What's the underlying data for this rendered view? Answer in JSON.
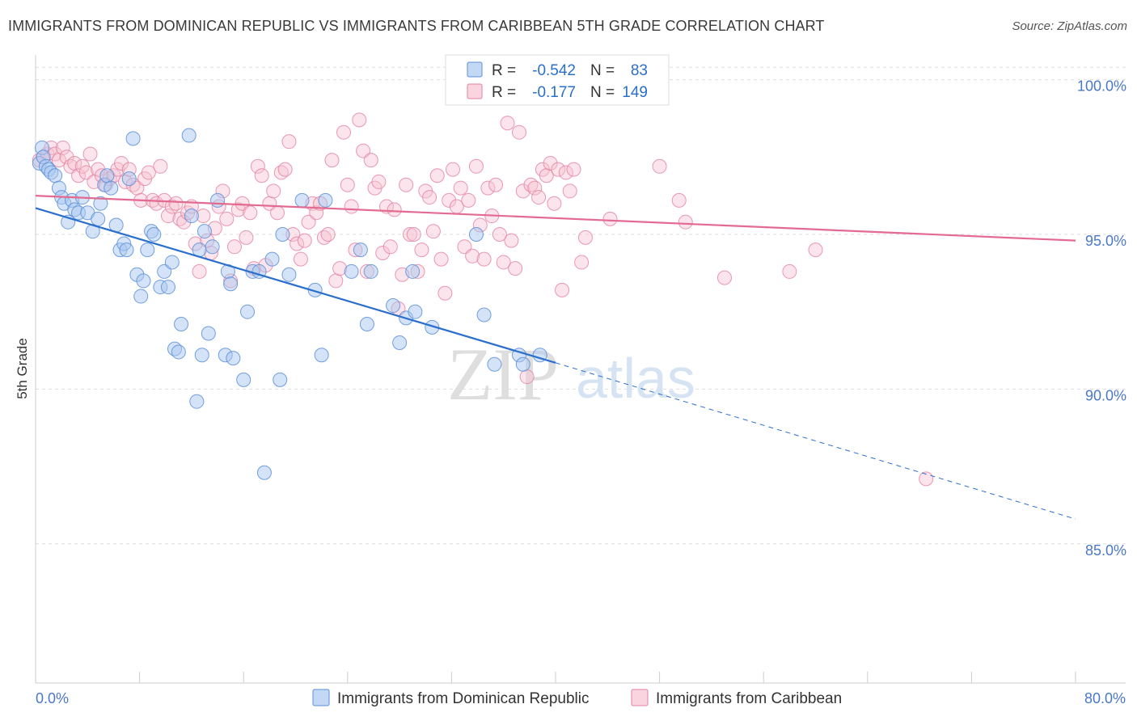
{
  "title": "IMMIGRANTS FROM DOMINICAN REPUBLIC VS IMMIGRANTS FROM CARIBBEAN 5TH GRADE CORRELATION CHART",
  "source": "Source: ZipAtlas.com",
  "watermark": {
    "part1": "ZIP",
    "part2": "atlas"
  },
  "legend_box": {
    "rows": [
      {
        "r_label": "R =",
        "r_value": "-0.542",
        "n_label": "N =",
        "n_value": "83"
      },
      {
        "r_label": "R =",
        "r_value": "-0.177",
        "n_label": "N =",
        "n_value": "149"
      }
    ]
  },
  "colors": {
    "blue": "#5b8fd9",
    "blue_fill": "#aac8f0",
    "blue_line": "#2a6fcc",
    "pink": "#e57fa0",
    "pink_fill": "#f6c3d3",
    "pink_line": "#e36a90",
    "tick_text": "#4a78c8",
    "grid": "#dddddd"
  },
  "chart_data": {
    "type": "scatter",
    "title": "IMMIGRANTS FROM DOMINICAN REPUBLIC VS IMMIGRANTS FROM CARIBBEAN 5TH GRADE CORRELATION CHART",
    "xlabel": "",
    "ylabel": "5th Grade",
    "xlim": [
      0,
      80
    ],
    "ylim": [
      80.5,
      100.8
    ],
    "x_tick_labels": [
      "0.0%",
      "80.0%"
    ],
    "y_ticks": [
      85,
      90,
      95,
      100
    ],
    "y_tick_labels": [
      "85.0%",
      "90.0%",
      "95.0%",
      "100.0%"
    ],
    "grid": true,
    "legend_position": "bottom",
    "series": [
      {
        "name": "Immigrants from Dominican Republic",
        "color": "blue",
        "r": -0.542,
        "n": 83,
        "trend": {
          "x0": 0,
          "y0": 95.85,
          "x1": 40,
          "y1": 90.85,
          "dashed_to_x": 80,
          "dashed_to_y": 85.8
        },
        "points": [
          [
            0.3,
            97.3
          ],
          [
            0.5,
            97.8
          ],
          [
            0.6,
            97.5
          ],
          [
            0.8,
            97.2
          ],
          [
            1.0,
            97.1
          ],
          [
            1.2,
            97.0
          ],
          [
            1.5,
            96.9
          ],
          [
            1.8,
            96.5
          ],
          [
            2.0,
            96.2
          ],
          [
            2.2,
            96.0
          ],
          [
            2.5,
            95.4
          ],
          [
            2.8,
            96.1
          ],
          [
            3.0,
            95.8
          ],
          [
            3.3,
            95.7
          ],
          [
            3.6,
            96.2
          ],
          [
            4.0,
            95.7
          ],
          [
            4.4,
            95.1
          ],
          [
            4.8,
            95.5
          ],
          [
            5.0,
            96.0
          ],
          [
            5.3,
            96.6
          ],
          [
            5.5,
            96.9
          ],
          [
            5.8,
            96.5
          ],
          [
            6.2,
            95.3
          ],
          [
            6.5,
            94.5
          ],
          [
            6.8,
            94.7
          ],
          [
            7.0,
            94.5
          ],
          [
            7.2,
            96.8
          ],
          [
            7.5,
            98.1
          ],
          [
            7.8,
            93.7
          ],
          [
            8.1,
            93.0
          ],
          [
            8.3,
            93.5
          ],
          [
            8.6,
            94.5
          ],
          [
            8.9,
            95.1
          ],
          [
            9.1,
            95.0
          ],
          [
            9.6,
            93.3
          ],
          [
            9.9,
            93.8
          ],
          [
            10.2,
            93.3
          ],
          [
            10.5,
            94.1
          ],
          [
            10.7,
            91.3
          ],
          [
            11.0,
            91.2
          ],
          [
            11.2,
            92.1
          ],
          [
            11.8,
            98.2
          ],
          [
            12.0,
            95.6
          ],
          [
            12.4,
            89.6
          ],
          [
            12.6,
            94.5
          ],
          [
            12.8,
            91.1
          ],
          [
            13.0,
            95.1
          ],
          [
            13.3,
            91.8
          ],
          [
            13.6,
            94.6
          ],
          [
            14.0,
            96.1
          ],
          [
            14.6,
            91.1
          ],
          [
            14.8,
            93.8
          ],
          [
            15.0,
            93.4
          ],
          [
            15.2,
            91.0
          ],
          [
            16.0,
            90.3
          ],
          [
            16.3,
            92.5
          ],
          [
            16.7,
            93.8
          ],
          [
            17.2,
            93.8
          ],
          [
            17.6,
            87.3
          ],
          [
            18.2,
            94.2
          ],
          [
            18.8,
            90.3
          ],
          [
            19.0,
            95.0
          ],
          [
            19.5,
            93.7
          ],
          [
            20.5,
            96.1
          ],
          [
            21.5,
            93.2
          ],
          [
            22.0,
            91.1
          ],
          [
            22.3,
            96.1
          ],
          [
            24.3,
            93.8
          ],
          [
            25.0,
            94.5
          ],
          [
            25.5,
            92.1
          ],
          [
            25.8,
            93.8
          ],
          [
            27.5,
            92.7
          ],
          [
            28.0,
            91.5
          ],
          [
            28.5,
            92.3
          ],
          [
            29.0,
            93.8
          ],
          [
            29.2,
            92.5
          ],
          [
            30.5,
            92.0
          ],
          [
            33.9,
            95.0
          ],
          [
            34.5,
            92.4
          ],
          [
            35.3,
            90.8
          ],
          [
            37.2,
            91.1
          ],
          [
            37.5,
            90.8
          ],
          [
            38.8,
            91.1
          ]
        ]
      },
      {
        "name": "Immigrants from Caribbean",
        "color": "pink",
        "r": -0.177,
        "n": 149,
        "trend": {
          "x0": 0,
          "y0": 96.25,
          "x1": 80,
          "y1": 94.8
        },
        "points": [
          [
            0.3,
            97.4
          ],
          [
            0.6,
            97.5
          ],
          [
            0.9,
            97.6
          ],
          [
            1.2,
            97.8
          ],
          [
            1.5,
            97.6
          ],
          [
            1.8,
            97.4
          ],
          [
            2.1,
            97.8
          ],
          [
            2.4,
            97.5
          ],
          [
            2.7,
            97.2
          ],
          [
            3.0,
            97.3
          ],
          [
            3.3,
            96.9
          ],
          [
            3.6,
            97.2
          ],
          [
            3.9,
            97.0
          ],
          [
            4.2,
            97.6
          ],
          [
            4.5,
            96.7
          ],
          [
            4.8,
            97.1
          ],
          [
            5.1,
            96.9
          ],
          [
            5.4,
            96.6
          ],
          [
            5.7,
            96.8
          ],
          [
            6.0,
            96.9
          ],
          [
            6.3,
            97.1
          ],
          [
            6.6,
            97.3
          ],
          [
            6.9,
            96.7
          ],
          [
            7.2,
            97.1
          ],
          [
            7.5,
            96.6
          ],
          [
            7.8,
            96.5
          ],
          [
            8.1,
            96.1
          ],
          [
            8.4,
            96.8
          ],
          [
            8.7,
            97.0
          ],
          [
            9.0,
            96.1
          ],
          [
            9.3,
            96.0
          ],
          [
            9.6,
            97.2
          ],
          [
            9.9,
            96.1
          ],
          [
            10.2,
            95.6
          ],
          [
            10.5,
            95.9
          ],
          [
            10.8,
            96.0
          ],
          [
            11.1,
            95.5
          ],
          [
            11.4,
            95.4
          ],
          [
            11.7,
            95.7
          ],
          [
            12.0,
            95.9
          ],
          [
            12.3,
            94.7
          ],
          [
            12.6,
            93.8
          ],
          [
            12.9,
            95.6
          ],
          [
            13.2,
            94.8
          ],
          [
            13.5,
            94.4
          ],
          [
            13.8,
            95.2
          ],
          [
            14.1,
            95.9
          ],
          [
            14.4,
            96.4
          ],
          [
            14.7,
            95.5
          ],
          [
            15.0,
            93.5
          ],
          [
            15.3,
            94.6
          ],
          [
            15.6,
            95.8
          ],
          [
            15.9,
            96.0
          ],
          [
            16.2,
            94.9
          ],
          [
            16.5,
            95.7
          ],
          [
            16.8,
            93.9
          ],
          [
            17.1,
            97.2
          ],
          [
            17.4,
            96.9
          ],
          [
            17.7,
            94.0
          ],
          [
            18.0,
            96.0
          ],
          [
            18.3,
            96.4
          ],
          [
            18.6,
            95.7
          ],
          [
            18.9,
            97.0
          ],
          [
            19.2,
            97.1
          ],
          [
            19.5,
            98.0
          ],
          [
            19.8,
            95.0
          ],
          [
            20.1,
            94.7
          ],
          [
            20.4,
            94.2
          ],
          [
            20.7,
            94.8
          ],
          [
            21.0,
            95.4
          ],
          [
            21.3,
            96.0
          ],
          [
            21.6,
            95.7
          ],
          [
            21.9,
            96.0
          ],
          [
            22.2,
            94.9
          ],
          [
            22.5,
            95.0
          ],
          [
            22.8,
            97.4
          ],
          [
            23.1,
            93.5
          ],
          [
            23.4,
            93.9
          ],
          [
            23.7,
            98.3
          ],
          [
            24.0,
            96.6
          ],
          [
            24.3,
            95.9
          ],
          [
            24.6,
            94.5
          ],
          [
            24.9,
            98.7
          ],
          [
            25.2,
            97.7
          ],
          [
            25.5,
            93.8
          ],
          [
            25.8,
            97.4
          ],
          [
            26.1,
            96.5
          ],
          [
            26.4,
            96.7
          ],
          [
            26.7,
            94.4
          ],
          [
            27.0,
            95.9
          ],
          [
            27.3,
            94.6
          ],
          [
            27.6,
            95.8
          ],
          [
            27.9,
            92.6
          ],
          [
            28.2,
            93.7
          ],
          [
            28.5,
            96.6
          ],
          [
            28.8,
            95.0
          ],
          [
            29.1,
            95.0
          ],
          [
            29.4,
            93.8
          ],
          [
            29.7,
            94.5
          ],
          [
            30.0,
            96.4
          ],
          [
            30.3,
            96.2
          ],
          [
            30.6,
            95.1
          ],
          [
            30.9,
            96.9
          ],
          [
            31.2,
            94.2
          ],
          [
            31.5,
            93.1
          ],
          [
            31.8,
            96.1
          ],
          [
            32.1,
            97.1
          ],
          [
            32.4,
            95.9
          ],
          [
            32.7,
            96.5
          ],
          [
            33.0,
            94.6
          ],
          [
            33.3,
            96.1
          ],
          [
            33.6,
            94.3
          ],
          [
            33.9,
            97.2
          ],
          [
            34.2,
            95.3
          ],
          [
            34.5,
            94.2
          ],
          [
            34.8,
            96.5
          ],
          [
            35.1,
            95.6
          ],
          [
            35.4,
            96.6
          ],
          [
            35.7,
            95.0
          ],
          [
            36.0,
            94.1
          ],
          [
            36.3,
            98.6
          ],
          [
            36.6,
            94.8
          ],
          [
            36.9,
            93.9
          ],
          [
            37.2,
            98.3
          ],
          [
            37.5,
            96.4
          ],
          [
            37.8,
            90.4
          ],
          [
            38.1,
            96.6
          ],
          [
            38.4,
            96.5
          ],
          [
            38.7,
            96.2
          ],
          [
            39.0,
            97.1
          ],
          [
            39.3,
            96.9
          ],
          [
            39.6,
            97.3
          ],
          [
            39.9,
            96.0
          ],
          [
            40.2,
            97.1
          ],
          [
            40.5,
            93.2
          ],
          [
            40.8,
            97.0
          ],
          [
            41.1,
            96.4
          ],
          [
            41.4,
            97.1
          ],
          [
            41.7,
            99.9
          ],
          [
            42.0,
            94.1
          ],
          [
            42.3,
            94.9
          ],
          [
            44.2,
            95.5
          ],
          [
            47.6,
            99.9
          ],
          [
            48.0,
            97.2
          ],
          [
            49.5,
            96.1
          ],
          [
            50.0,
            95.4
          ],
          [
            53.0,
            93.6
          ],
          [
            58.0,
            93.8
          ],
          [
            60.0,
            94.5
          ],
          [
            68.5,
            87.1
          ]
        ]
      }
    ]
  },
  "legend": {
    "items": [
      {
        "label": "Immigrants from Dominican Republic"
      },
      {
        "label": "Immigrants from Caribbean"
      }
    ]
  },
  "x_axis": {
    "min_label": "0.0%",
    "max_label": "80.0%"
  },
  "y_axis": {
    "label": "5th Grade"
  }
}
